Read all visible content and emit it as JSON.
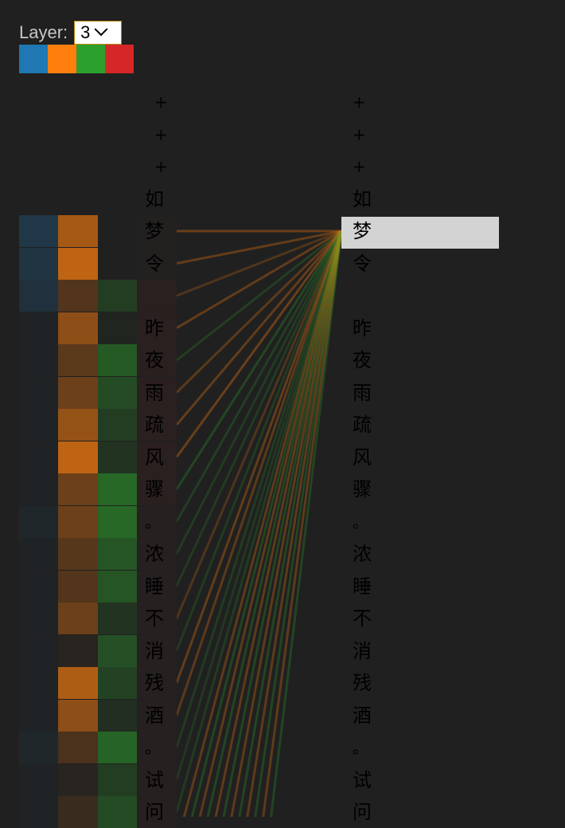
{
  "controls": {
    "layer_label": "Layer:",
    "layer_value": "3",
    "head_colors": [
      "#1f77b4",
      "#ff7f0e",
      "#2ca02c",
      "#d62728"
    ]
  },
  "tokens": [
    "+",
    "+",
    "+",
    "如",
    "梦",
    "令",
    "",
    "昨",
    "夜",
    "雨",
    "疏",
    "风",
    "骤",
    "。",
    "浓",
    "睡",
    "不",
    "消",
    "残",
    "酒",
    "。",
    "试",
    "问"
  ],
  "selected_token_index": 4,
  "attention": [
    [
      0,
      0,
      0,
      0
    ],
    [
      0,
      0,
      0,
      0
    ],
    [
      0,
      0,
      0,
      0
    ],
    [
      0,
      0,
      0,
      0
    ],
    [
      0.35,
      0.8,
      0,
      0.05
    ],
    [
      0.3,
      0.95,
      0,
      0.05
    ],
    [
      0.25,
      0.3,
      0.3,
      0.15
    ],
    [
      0.05,
      0.65,
      0.05,
      0.15
    ],
    [
      0.05,
      0.35,
      0.6,
      0.15
    ],
    [
      0.05,
      0.45,
      0.45,
      0.15
    ],
    [
      0.05,
      0.7,
      0.3,
      0.15
    ],
    [
      0.05,
      0.95,
      0.2,
      0.15
    ],
    [
      0.05,
      0.45,
      0.75,
      0.15
    ],
    [
      0.1,
      0.45,
      0.75,
      0.1
    ],
    [
      0.05,
      0.32,
      0.55,
      0.1
    ],
    [
      0.05,
      0.3,
      0.55,
      0.1
    ],
    [
      0.05,
      0.45,
      0.2,
      0.1
    ],
    [
      0.05,
      0.05,
      0.5,
      0.1
    ],
    [
      0.05,
      0.85,
      0.35,
      0.1
    ],
    [
      0.05,
      0.65,
      0.15,
      0.1
    ],
    [
      0.1,
      0.25,
      0.7,
      0.1
    ],
    [
      0.05,
      0.05,
      0.3,
      0.1
    ],
    [
      0.05,
      0.15,
      0.45,
      0.1
    ]
  ],
  "line_strengths": [
    0,
    0,
    0,
    0,
    0.55,
    0.5,
    0.35,
    0.5,
    0.4,
    0.45,
    0.5,
    0.55,
    0.5,
    0.4,
    0.35,
    0.35,
    0.35,
    0.35,
    0.5,
    0.45,
    0.35,
    0.3,
    0.35
  ],
  "extra_lines": 12
}
